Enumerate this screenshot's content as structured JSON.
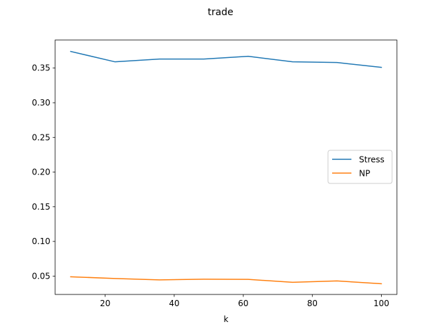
{
  "chart_data": {
    "type": "line",
    "title": "trade",
    "xlabel": "k",
    "ylabel": "",
    "x": [
      10,
      22.86,
      35.71,
      48.57,
      61.43,
      74.29,
      87.14,
      100
    ],
    "xlim": [
      5.5,
      104.5
    ],
    "ylim": [
      0.0235,
      0.3905
    ],
    "xticks": [
      20,
      40,
      60,
      80,
      100
    ],
    "yticks": [
      0.05,
      0.1,
      0.15,
      0.2,
      0.25,
      0.3,
      0.35
    ],
    "xtick_labels": [
      "20",
      "40",
      "60",
      "80",
      "100"
    ],
    "ytick_labels": [
      "0.05",
      "0.10",
      "0.15",
      "0.20",
      "0.25",
      "0.30",
      "0.35"
    ],
    "grid": false,
    "legend_position": "center-right",
    "series": [
      {
        "name": "Stress",
        "color": "#1f77b4",
        "values": [
          0.374,
          0.359,
          0.363,
          0.363,
          0.367,
          0.359,
          0.358,
          0.351
        ]
      },
      {
        "name": "NP",
        "color": "#ff7f0e",
        "values": [
          0.049,
          0.0465,
          0.0445,
          0.0455,
          0.0452,
          0.041,
          0.043,
          0.039
        ]
      }
    ]
  }
}
